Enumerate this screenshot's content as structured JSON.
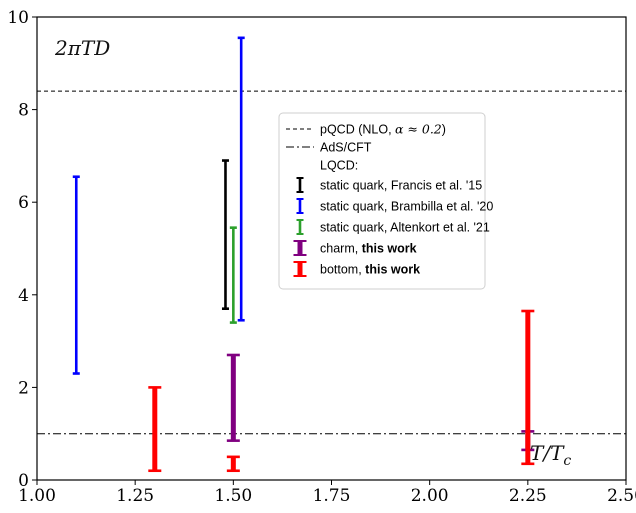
{
  "chart_data": {
    "type": "errorbar",
    "xlim": [
      1.0,
      2.5
    ],
    "ylim": [
      0,
      10
    ],
    "x_ticks": [
      "1.00",
      "1.25",
      "1.50",
      "1.75",
      "2.00",
      "2.25",
      "2.50"
    ],
    "y_ticks": [
      "0",
      "2",
      "4",
      "6",
      "8",
      "10"
    ],
    "ylabel_inside": "2πTD",
    "xlabel_inside": "T/T",
    "xlabel_inside_sub": "c",
    "grid": false,
    "legend_position": "upper-right",
    "reference_lines": [
      {
        "name": "pQCD (NLO, α ≈ 0.2)",
        "name_prefix": "pQCD (NLO, ",
        "name_math": "α ≈ 0.2",
        "name_suffix": ")",
        "y": 8.4,
        "style": "dashed",
        "color": "#000000"
      },
      {
        "name": "AdS/CFT",
        "y": 1.0,
        "style": "dashdot",
        "color": "#000000"
      }
    ],
    "legend_header": "LQCD:",
    "series": [
      {
        "name": "static quark, Francis et al. '15",
        "name_bold": "",
        "color": "#000000",
        "width": "thin",
        "points": [
          {
            "x": 1.48,
            "low": 3.7,
            "high": 6.9
          }
        ]
      },
      {
        "name": "static quark, Brambilla et al. '20",
        "name_bold": "",
        "color": "#0000ff",
        "width": "thin",
        "points": [
          {
            "x": 1.1,
            "low": 2.3,
            "high": 6.55
          },
          {
            "x": 1.52,
            "low": 3.45,
            "high": 9.55
          }
        ]
      },
      {
        "name": "static quark, Altenkort et al. '21",
        "name_bold": "",
        "color": "#2ca02c",
        "width": "thin",
        "points": [
          {
            "x": 1.5,
            "low": 3.4,
            "high": 5.45
          }
        ]
      },
      {
        "name": "charm, ",
        "name_bold": "this work",
        "color": "#800080",
        "width": "thick",
        "points": [
          {
            "x": 1.5,
            "low": 0.85,
            "high": 2.7
          },
          {
            "x": 2.25,
            "low": 0.65,
            "high": 1.05
          }
        ]
      },
      {
        "name": "bottom, ",
        "name_bold": "this work",
        "color": "#ff0000",
        "width": "thick",
        "points": [
          {
            "x": 1.3,
            "low": 0.2,
            "high": 2.0
          },
          {
            "x": 1.5,
            "low": 0.2,
            "high": 0.5
          },
          {
            "x": 2.25,
            "low": 0.35,
            "high": 3.65
          }
        ]
      }
    ]
  }
}
